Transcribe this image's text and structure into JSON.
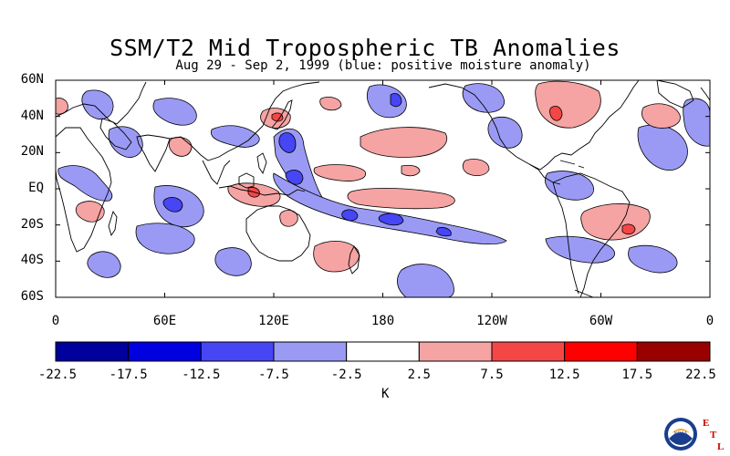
{
  "title": "SSM/T2 Mid Tropospheric TB Anomalies",
  "subtitle": "Aug 29 - Sep 2, 1999 (blue: positive moisture anomaly)",
  "map": {
    "lon_range": [
      0,
      360
    ],
    "lat_range": [
      -60,
      60
    ],
    "y_ticks": [
      {
        "label": "60N",
        "lat": 60
      },
      {
        "label": "40N",
        "lat": 40
      },
      {
        "label": "20N",
        "lat": 20
      },
      {
        "label": "EQ",
        "lat": 0
      },
      {
        "label": "20S",
        "lat": -20
      },
      {
        "label": "40S",
        "lat": -40
      },
      {
        "label": "60S",
        "lat": -60
      }
    ],
    "x_ticks": [
      {
        "label": "0",
        "lon": 0
      },
      {
        "label": "60E",
        "lon": 60
      },
      {
        "label": "120E",
        "lon": 120
      },
      {
        "label": "180",
        "lon": 180
      },
      {
        "label": "120W",
        "lon": 240
      },
      {
        "label": "60W",
        "lon": 300
      },
      {
        "label": "0",
        "lon": 360
      }
    ]
  },
  "colorbar": {
    "unit": "K",
    "labels": [
      "-22.5",
      "-17.5",
      "-12.5",
      "-7.5",
      "-2.5",
      "2.5",
      "7.5",
      "12.5",
      "17.5",
      "22.5"
    ],
    "colors": [
      "#00009c",
      "#0000e0",
      "#4646f5",
      "#9a9af5",
      "#ffffff",
      "#f5a3a3",
      "#f54646",
      "#ff0000",
      "#990000"
    ]
  },
  "logo": {
    "text": "NOAA",
    "letters": [
      "E",
      "T",
      "L"
    ]
  }
}
